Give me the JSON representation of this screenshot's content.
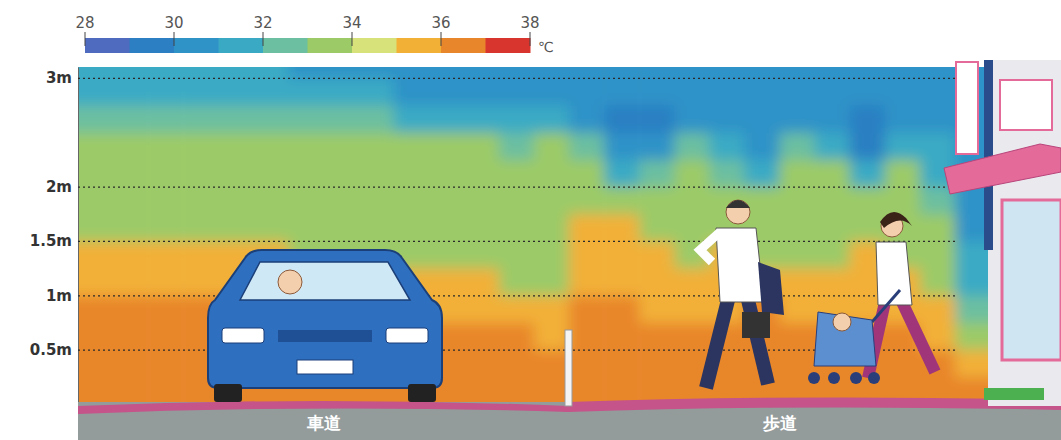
{
  "chart_data": {
    "type": "heatmap",
    "ylim": [
      0,
      3.1
    ],
    "yticks": [
      {
        "value": 0.5,
        "label": "0.5m"
      },
      {
        "value": 1,
        "label": "1m"
      },
      {
        "value": 1.5,
        "label": "1.5m"
      },
      {
        "value": 2,
        "label": "2m"
      },
      {
        "value": 3,
        "label": "3m"
      }
    ],
    "grid": true,
    "categories": [
      "車道",
      "歩道"
    ],
    "y": [
      0.125,
      0.375,
      0.625,
      0.875,
      1.125,
      1.375,
      1.625,
      1.875,
      2.125,
      2.375,
      2.625,
      2.875,
      3.125
    ],
    "z": [
      [
        36.5,
        36.5,
        36.5,
        36.5,
        36.5,
        36.5,
        36.5,
        36.5,
        36.5,
        36.5,
        36.5,
        36.5,
        36.5,
        36.5,
        36.5,
        36.5,
        36.5,
        36.5,
        36.5,
        36.5,
        36.5,
        36.5,
        36.5,
        36.5,
        36.5,
        36.5
      ],
      [
        36.5,
        36.5,
        36.5,
        36.5,
        36.5,
        36.5,
        36.5,
        36.5,
        36.5,
        36.5,
        36.5,
        36.5,
        36.5,
        36.5,
        36.5,
        36.5,
        36.5,
        36.5,
        36.5,
        36.5,
        36.5,
        36.5,
        36.5,
        36.5,
        36.5,
        35.5
      ],
      [
        36.5,
        36.5,
        36.5,
        36.5,
        36.5,
        36.5,
        36.5,
        36.5,
        36.5,
        36.5,
        36.5,
        36.5,
        36.5,
        35.5,
        36.5,
        36.5,
        36.5,
        36.5,
        36.5,
        36.5,
        36.5,
        36.5,
        36.5,
        36.5,
        35.5,
        33.5
      ],
      [
        36.5,
        36.5,
        36.5,
        36.5,
        36.5,
        36.5,
        36.5,
        36.5,
        36.5,
        35.5,
        35.5,
        35.5,
        35.5,
        35.5,
        36.5,
        36.5,
        35.5,
        35.5,
        35.5,
        36.5,
        35.5,
        35.5,
        35.5,
        35.5,
        35.5,
        32.5
      ],
      [
        35.5,
        35.5,
        35.5,
        35.5,
        35.5,
        35.5,
        35.5,
        35.5,
        35.5,
        35.5,
        35.5,
        35.5,
        33.5,
        33.5,
        35.5,
        35.5,
        35.5,
        35.5,
        35.5,
        35.5,
        35.5,
        35.5,
        35.5,
        35.5,
        33.5,
        31.5
      ],
      [
        35.5,
        35.5,
        35.5,
        35.5,
        35.5,
        35.5,
        33.5,
        33.5,
        33.5,
        33.5,
        33.5,
        33.5,
        33.5,
        33.5,
        35.5,
        35.5,
        35.5,
        33.5,
        35.5,
        33.5,
        33.5,
        33.5,
        35.5,
        33.5,
        33.5,
        31.5
      ],
      [
        33.5,
        33.5,
        33.5,
        33.5,
        33.5,
        33.5,
        33.5,
        33.5,
        33.5,
        33.5,
        33.5,
        33.5,
        33.5,
        33.5,
        35.5,
        35.5,
        33.5,
        33.5,
        33.5,
        33.5,
        33.5,
        33.5,
        33.5,
        33.5,
        33.5,
        30.5
      ],
      [
        33.5,
        33.5,
        33.5,
        33.5,
        33.5,
        33.5,
        33.5,
        33.5,
        33.5,
        33.5,
        33.5,
        33.5,
        33.5,
        33.5,
        33.5,
        33.5,
        33.5,
        33.5,
        33.5,
        33.5,
        33.5,
        33.5,
        33.5,
        33.5,
        32.5,
        30.5
      ],
      [
        33.5,
        33.5,
        33.5,
        33.5,
        33.5,
        33.5,
        33.5,
        33.5,
        33.5,
        33.5,
        33.5,
        33.5,
        33.5,
        33.5,
        33.5,
        31.5,
        32.5,
        33.5,
        32.5,
        31.5,
        33.5,
        33.5,
        31.5,
        33.5,
        31.5,
        30.5
      ],
      [
        33.5,
        33.5,
        33.5,
        33.5,
        33.5,
        33.5,
        33.5,
        33.5,
        33.5,
        33.5,
        33.5,
        33.5,
        32.5,
        33.5,
        32.5,
        30.5,
        30.5,
        32.5,
        31.5,
        30.5,
        32.5,
        31.5,
        29.5,
        31.5,
        31.5,
        30.5
      ],
      [
        32.5,
        32.5,
        32.5,
        32.5,
        32.5,
        32.5,
        32.5,
        32.5,
        32.5,
        31.5,
        31.5,
        31.5,
        31.5,
        31.5,
        30.5,
        29.5,
        29.5,
        30.5,
        30.5,
        30.5,
        30.5,
        30.5,
        29.5,
        30.5,
        30.5,
        30.5
      ],
      [
        31.5,
        31.5,
        31.5,
        31.5,
        31.5,
        31.5,
        31.5,
        31.5,
        31.5,
        30.5,
        30.5,
        30.5,
        30.5,
        30.5,
        30.5,
        30.5,
        30.5,
        30.5,
        30.5,
        30.5,
        30.5,
        30.5,
        30.5,
        30.5,
        30.5,
        30.5
      ],
      [
        31.5,
        31.5,
        31.5,
        31.5,
        31.5,
        31.5,
        30.5,
        30.5,
        30.5,
        30.5,
        30.5,
        30.5,
        30.5,
        30.5,
        30.5,
        30.5,
        30.5,
        30.5,
        30.5,
        30.5,
        30.5,
        30.5,
        30.5,
        30.5,
        30.5,
        30.5
      ]
    ],
    "colors": [
      "#4f6bbf",
      "#2b7fc2",
      "#2f93c8",
      "#3aaac4",
      "#6cbfa0",
      "#9cca67",
      "#d7e37a",
      "#f2b037",
      "#e8862c",
      "#d9352f"
    ],
    "colorbar_range": [
      28,
      38
    ],
    "colorbar_ticks": [
      28,
      30,
      32,
      34,
      36,
      38
    ],
    "colorbar_label": "℃"
  }
}
